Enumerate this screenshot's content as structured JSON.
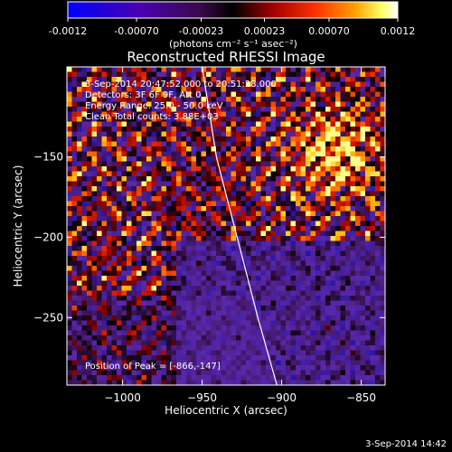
{
  "colorbar": {
    "ticks": [
      "-0.0012",
      "-0.00070",
      "-0.00023",
      "0.00023",
      "0.00070",
      "0.0012"
    ],
    "tick_values": [
      -0.0012,
      -0.0007,
      -0.00023,
      0.00023,
      0.0007,
      0.0012
    ],
    "range": [
      -0.0012,
      0.0012
    ],
    "unit_label": "(photons cm⁻² s⁻¹ asec⁻²)"
  },
  "chart_data": {
    "type": "heatmap",
    "title": "Reconstructed RHESSI Image",
    "xlabel": "Heliocentric X (arcsec)",
    "ylabel": "Heliocentric Y (arcsec)",
    "xlim": [
      -1035,
      -835
    ],
    "ylim": [
      -292,
      -94
    ],
    "xticks": [
      -1000,
      -950,
      -900,
      -850
    ],
    "xtick_labels": [
      "−1000",
      "−950",
      "−900",
      "−850"
    ],
    "yticks": [
      -150,
      -200,
      -250
    ],
    "ytick_labels": [
      "−150",
      "−200",
      "−250"
    ],
    "peak": {
      "x": -866,
      "y": -147
    },
    "limb_points": [
      [
        -950,
        -94
      ],
      [
        -941,
        -150
      ],
      [
        -928,
        -200
      ],
      [
        -915,
        -250
      ],
      [
        -903,
        -292
      ]
    ],
    "grid": false,
    "legend": "none",
    "colormap": "rainbow-hot (blue to purple to red to orange to yellow to white)"
  },
  "annotations": {
    "time_range": "3-Sep-2014 20:47:52.000 to 20:51:28.000",
    "detectors": "Detectors: 3F 6F 9F, Att 0",
    "energy_range": "Energy Range: 25.0 - 50.0 keV",
    "clean_counts": "Clean    Total counts: 3.88E+03",
    "peak_position": "Position of Peak = [-866,-147]"
  },
  "footer": {
    "timestamp": "3-Sep-2014 14:42"
  }
}
